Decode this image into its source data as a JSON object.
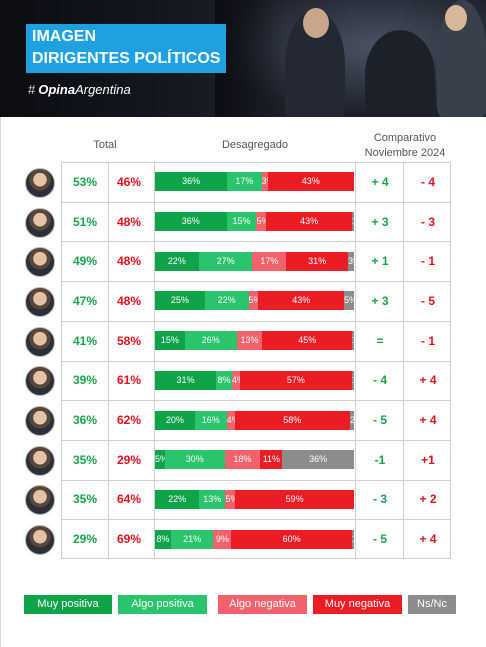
{
  "header": {
    "title_line1": "IMAGEN",
    "title_line2": "DIRIGENTES POLÍTICOS",
    "brand_bold": "Opina",
    "brand_light": "Argentina",
    "brand_icon": "hash-icon"
  },
  "columns": {
    "total": "Total",
    "breakdown": "Desagregado",
    "compare_line1": "Comparativo",
    "compare_line2": "Noviembre 2024"
  },
  "colors": {
    "muy_positiva": "#0fa34a",
    "algo_positiva": "#29c46b",
    "algo_negativa": "#f2626c",
    "muy_negativa": "#ec1c24",
    "ns_nc": "#8c8c8c",
    "positive_text": "#1aa34a",
    "negative_text": "#e0111a"
  },
  "legend": [
    "Muy positiva",
    "Algo positiva",
    "Algo negativa",
    "Muy negativa",
    "Ns/Nc"
  ],
  "chart_data": {
    "type": "bar",
    "stacked": true,
    "series_names": [
      "Muy positiva",
      "Algo positiva",
      "Algo negativa",
      "Muy negativa",
      "Ns/Nc"
    ],
    "rows": [
      {
        "positive": "53%",
        "negative": "46%",
        "segments": [
          36,
          17,
          3,
          43,
          0
        ],
        "labels": [
          "36%",
          "17%",
          "3%",
          "43%",
          "0%"
        ],
        "cmp_pos": "+ 4",
        "cmp_neg": "- 4"
      },
      {
        "positive": "51%",
        "negative": "48%",
        "segments": [
          36,
          15,
          5,
          43,
          1
        ],
        "labels": [
          "36%",
          "15%",
          "5%",
          "43%",
          "1%"
        ],
        "cmp_pos": "+ 3",
        "cmp_neg": "- 3"
      },
      {
        "positive": "49%",
        "negative": "48%",
        "segments": [
          22,
          27,
          17,
          31,
          3
        ],
        "labels": [
          "22%",
          "27%",
          "17%",
          "31%",
          "3%"
        ],
        "cmp_pos": "+ 1",
        "cmp_neg": "- 1"
      },
      {
        "positive": "47%",
        "negative": "48%",
        "segments": [
          25,
          22,
          5,
          43,
          5
        ],
        "labels": [
          "25%",
          "22%",
          "5%",
          "43%",
          "5%"
        ],
        "cmp_pos": "+ 3",
        "cmp_neg": "- 5"
      },
      {
        "positive": "41%",
        "negative": "58%",
        "segments": [
          15,
          26,
          13,
          45,
          1
        ],
        "labels": [
          "15%",
          "26%",
          "13%",
          "45%",
          "1%"
        ],
        "cmp_pos": "=",
        "cmp_neg": "- 1"
      },
      {
        "positive": "39%",
        "negative": "61%",
        "segments": [
          31,
          8,
          4,
          57,
          1
        ],
        "labels": [
          "31%",
          "8%",
          "4%",
          "57%",
          "1%"
        ],
        "cmp_pos": "- 4",
        "cmp_neg": "+ 4"
      },
      {
        "positive": "36%",
        "negative": "62%",
        "segments": [
          20,
          16,
          4,
          58,
          2
        ],
        "labels": [
          "20%",
          "16%",
          "4%",
          "58%",
          "2%"
        ],
        "cmp_pos": "- 5",
        "cmp_neg": "+ 4"
      },
      {
        "positive": "35%",
        "negative": "29%",
        "segments": [
          5,
          30,
          18,
          11,
          36
        ],
        "labels": [
          "5%",
          "30%",
          "18%",
          "11%",
          "36%"
        ],
        "cmp_pos": "-1",
        "cmp_neg": "+1"
      },
      {
        "positive": "35%",
        "negative": "64%",
        "segments": [
          22,
          13,
          5,
          59,
          0
        ],
        "labels": [
          "22%",
          "13%",
          "5%",
          "59%",
          "0%"
        ],
        "cmp_pos": "- 3",
        "cmp_neg": "+ 2"
      },
      {
        "positive": "29%",
        "negative": "69%",
        "segments": [
          8,
          21,
          9,
          60,
          1
        ],
        "labels": [
          "8%",
          "21%",
          "9%",
          "60%",
          "1%"
        ],
        "cmp_pos": "- 5",
        "cmp_neg": "+ 4"
      }
    ]
  }
}
